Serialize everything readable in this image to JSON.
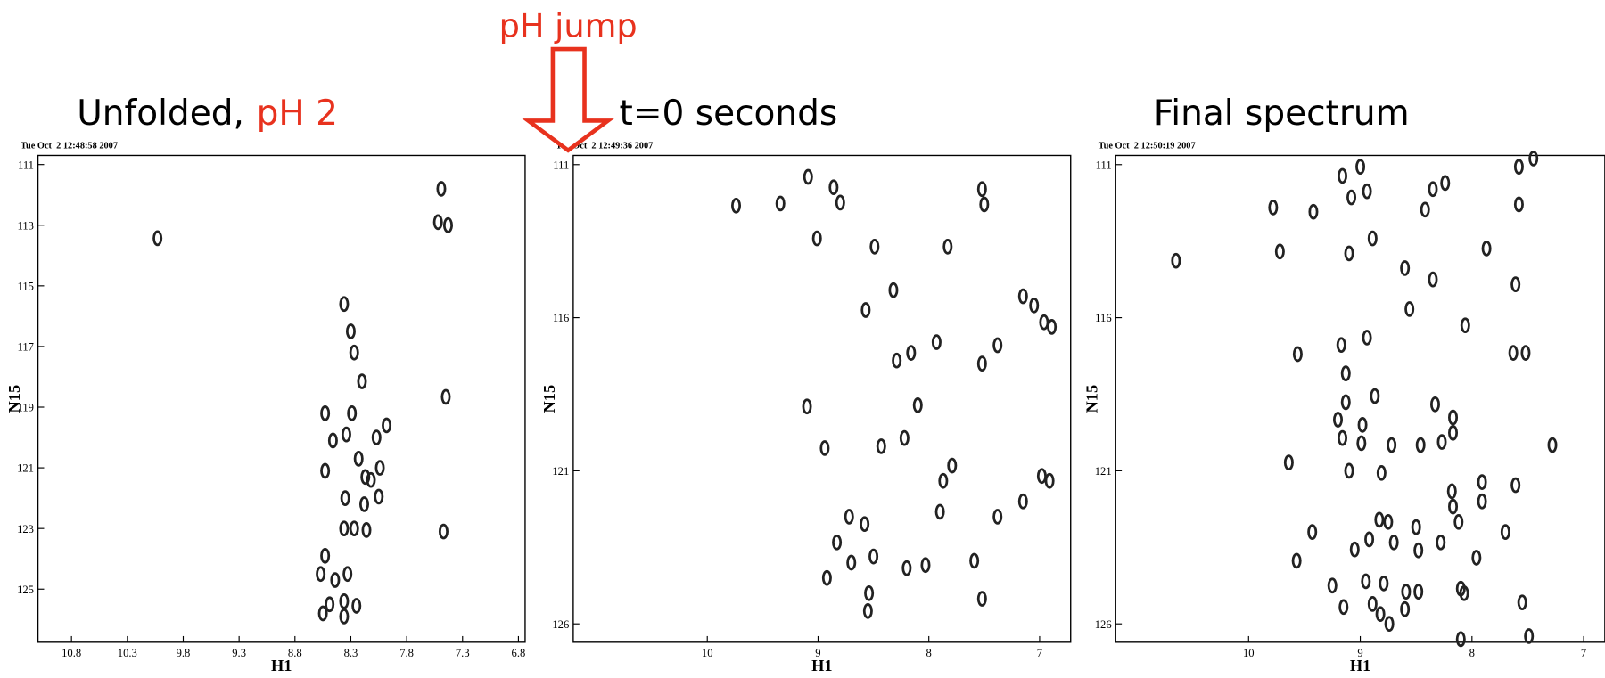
{
  "ph_jump": "pH jump",
  "chart_data": [
    {
      "type": "scatter",
      "title": "Unfolded,",
      "title_highlight": "pH 2",
      "subtitle": "Tue Oct  2 12:48:58 2007",
      "xlabel": "H1",
      "ylabel": "N15",
      "color": "#222222",
      "xlim": [
        11.1,
        6.74
      ],
      "ylim": [
        126.75,
        110.7
      ],
      "xticks": [
        10.8,
        10.3,
        9.8,
        9.3,
        8.8,
        8.3,
        7.8,
        7.3,
        6.8
      ],
      "yticks": [
        111,
        113,
        115,
        117,
        119,
        121,
        123,
        125
      ],
      "x": [
        10.03,
        7.49,
        7.43,
        7.52,
        7.45,
        7.47,
        8.36,
        8.3,
        8.27,
        8.2,
        8.29,
        7.98,
        8.46,
        8.34,
        8.07,
        8.23,
        8.17,
        8.04,
        8.35,
        8.18,
        8.05,
        8.12,
        8.36,
        8.27,
        8.16,
        8.53,
        8.57,
        8.44,
        8.33,
        8.49,
        8.36,
        8.25,
        8.55,
        8.36,
        8.53,
        8.53
      ],
      "values": [
        113.43,
        111.8,
        113.0,
        112.9,
        118.66,
        123.1,
        115.6,
        116.5,
        117.2,
        118.15,
        119.2,
        119.6,
        120.1,
        119.9,
        120.0,
        120.7,
        121.3,
        121.0,
        122.0,
        122.2,
        121.95,
        121.4,
        123.0,
        123.0,
        123.05,
        123.9,
        124.5,
        124.7,
        124.5,
        125.5,
        125.4,
        125.55,
        125.8,
        125.9,
        119.2,
        121.1
      ]
    },
    {
      "type": "scatter",
      "title": "t=0 seconds",
      "subtitle": "Tue Oct  2 12:49:36 2007",
      "xlabel": "H1",
      "ylabel": "N15",
      "color": "#222222",
      "xlim": [
        11.21,
        6.72
      ],
      "ylim": [
        126.6,
        110.7
      ],
      "xticks": [
        10,
        9,
        8,
        7
      ],
      "yticks": [
        111,
        116,
        121,
        126
      ],
      "x": [
        9.74,
        9.34,
        9.09,
        8.86,
        8.8,
        9.01,
        8.49,
        7.83,
        7.52,
        7.5,
        8.32,
        8.57,
        7.93,
        8.29,
        8.16,
        7.52,
        7.38,
        7.15,
        7.05,
        6.96,
        6.89,
        9.1,
        8.1,
        8.43,
        8.22,
        8.94,
        7.87,
        7.79,
        7.9,
        7.15,
        6.98,
        6.91,
        7.38,
        8.72,
        8.58,
        8.83,
        8.5,
        8.7,
        7.59,
        8.03,
        8.92,
        8.54,
        8.55,
        7.52,
        8.2
      ],
      "values": [
        112.34,
        112.27,
        111.4,
        111.74,
        112.24,
        113.41,
        113.68,
        113.68,
        111.8,
        112.3,
        115.1,
        115.75,
        116.8,
        117.4,
        117.15,
        117.5,
        116.9,
        115.3,
        115.6,
        116.15,
        116.3,
        118.9,
        118.86,
        120.2,
        119.93,
        120.26,
        121.33,
        120.83,
        122.34,
        122.0,
        121.17,
        121.33,
        122.5,
        122.5,
        122.74,
        123.34,
        123.8,
        124.0,
        123.94,
        124.08,
        124.5,
        125.0,
        125.58,
        125.18,
        124.18
      ]
    },
    {
      "type": "scatter",
      "title": "Final spectrum",
      "subtitle": "Tue Oct  2 12:50:19 2007",
      "xlabel": "H1",
      "ylabel": "N15",
      "color": "#222222",
      "xlim": [
        11.19,
        6.81
      ],
      "ylim": [
        126.6,
        110.7
      ],
      "xticks": [
        10,
        9,
        8,
        7
      ],
      "yticks": [
        111,
        116,
        121,
        126
      ],
      "x": [
        10.65,
        9.78,
        9.72,
        9.42,
        9.16,
        9.0,
        9.08,
        8.94,
        8.89,
        9.1,
        8.42,
        8.35,
        8.24,
        8.6,
        8.35,
        8.56,
        7.87,
        7.61,
        7.58,
        7.58,
        7.45,
        8.06,
        9.56,
        9.17,
        8.94,
        9.13,
        7.52,
        7.63,
        8.87,
        9.13,
        9.2,
        8.98,
        8.33,
        8.17,
        8.17,
        8.27,
        8.46,
        8.72,
        8.99,
        9.16,
        9.64,
        9.1,
        8.81,
        7.28,
        7.91,
        7.91,
        8.18,
        8.17,
        7.61,
        8.12,
        8.83,
        8.75,
        8.5,
        8.28,
        9.43,
        7.7,
        9.05,
        8.92,
        8.7,
        8.48,
        7.96,
        9.57,
        9.25,
        8.95,
        8.79,
        8.59,
        8.48,
        8.07,
        8.1,
        9.15,
        8.89,
        8.82,
        8.74,
        8.6,
        7.55,
        8.1,
        7.49
      ],
      "values": [
        114.14,
        112.4,
        113.84,
        112.54,
        111.37,
        111.07,
        112.07,
        111.87,
        113.41,
        113.9,
        112.47,
        111.8,
        111.6,
        114.38,
        114.75,
        115.72,
        113.74,
        114.91,
        111.07,
        112.3,
        110.8,
        116.25,
        117.19,
        116.89,
        116.65,
        117.82,
        117.15,
        117.15,
        118.56,
        118.76,
        119.33,
        119.5,
        118.83,
        119.26,
        119.76,
        120.06,
        120.16,
        120.16,
        120.1,
        119.93,
        120.73,
        121.0,
        121.07,
        120.16,
        121.37,
        122.0,
        121.67,
        122.17,
        121.47,
        122.67,
        122.6,
        122.67,
        122.84,
        123.34,
        123.0,
        123.0,
        123.57,
        123.24,
        123.34,
        123.6,
        123.84,
        123.94,
        124.75,
        124.61,
        124.68,
        124.95,
        124.95,
        125.0,
        124.85,
        125.45,
        125.35,
        125.68,
        126.0,
        125.52,
        125.3,
        126.5,
        126.4
      ]
    }
  ]
}
